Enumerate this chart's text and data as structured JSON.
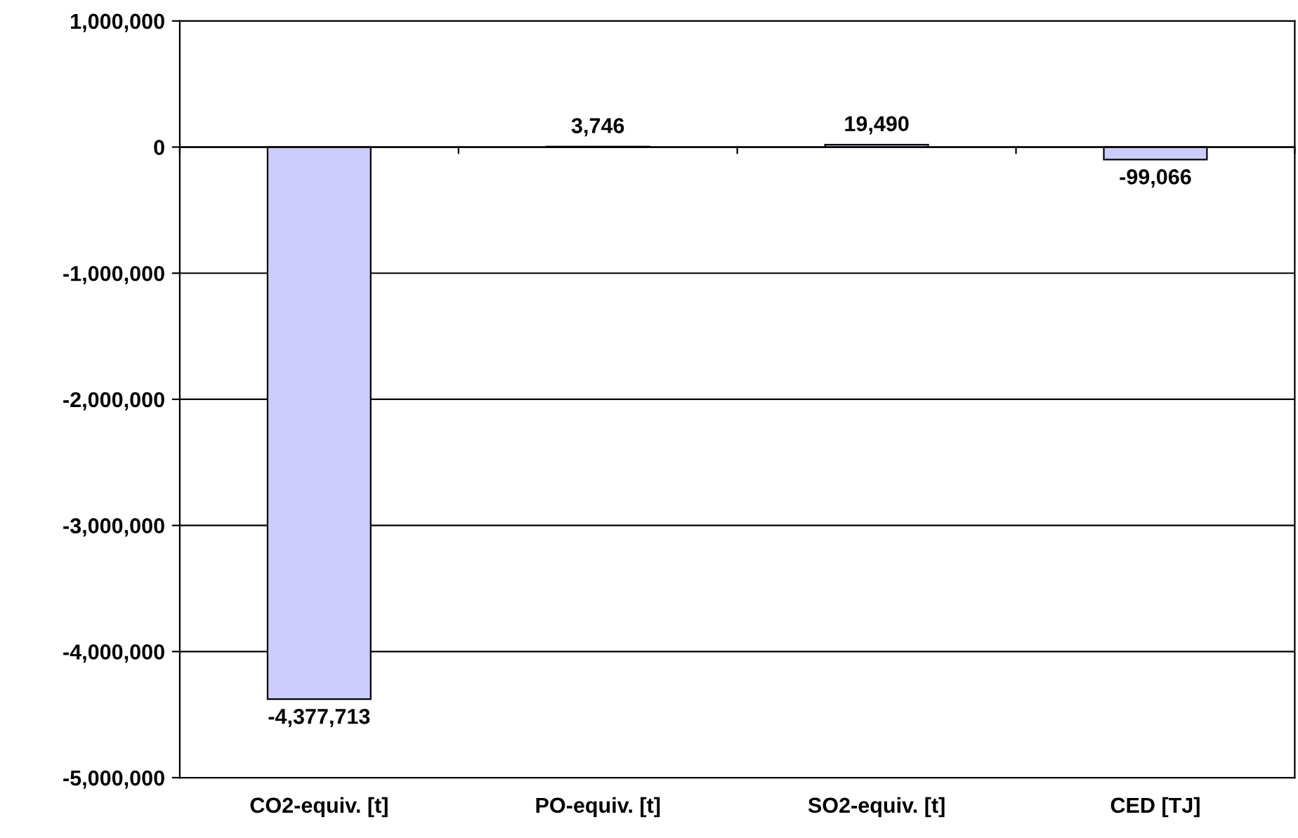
{
  "chart_data": {
    "type": "bar",
    "categories": [
      "CO2-equiv. [t]",
      "PO-equiv. [t]",
      "SO2-equiv. [t]",
      "CED [TJ]"
    ],
    "values": [
      -4377713,
      3746,
      19490,
      -99066
    ],
    "value_labels": [
      "-4,377,713",
      "3,746",
      "19,490",
      "-99,066"
    ],
    "color": "#ccccff",
    "ylim": [
      -5000000,
      1000000
    ],
    "yticks": [
      {
        "value": -5000000,
        "label": "-5,000,000"
      },
      {
        "value": -4000000,
        "label": "-4,000,000"
      },
      {
        "value": -3000000,
        "label": "-3,000,000"
      },
      {
        "value": -2000000,
        "label": "-2,000,000"
      },
      {
        "value": -1000000,
        "label": "-1,000,000"
      },
      0,
      {
        "value": 1000000,
        "label": "1,000,000"
      }
    ],
    "grid": "y"
  }
}
